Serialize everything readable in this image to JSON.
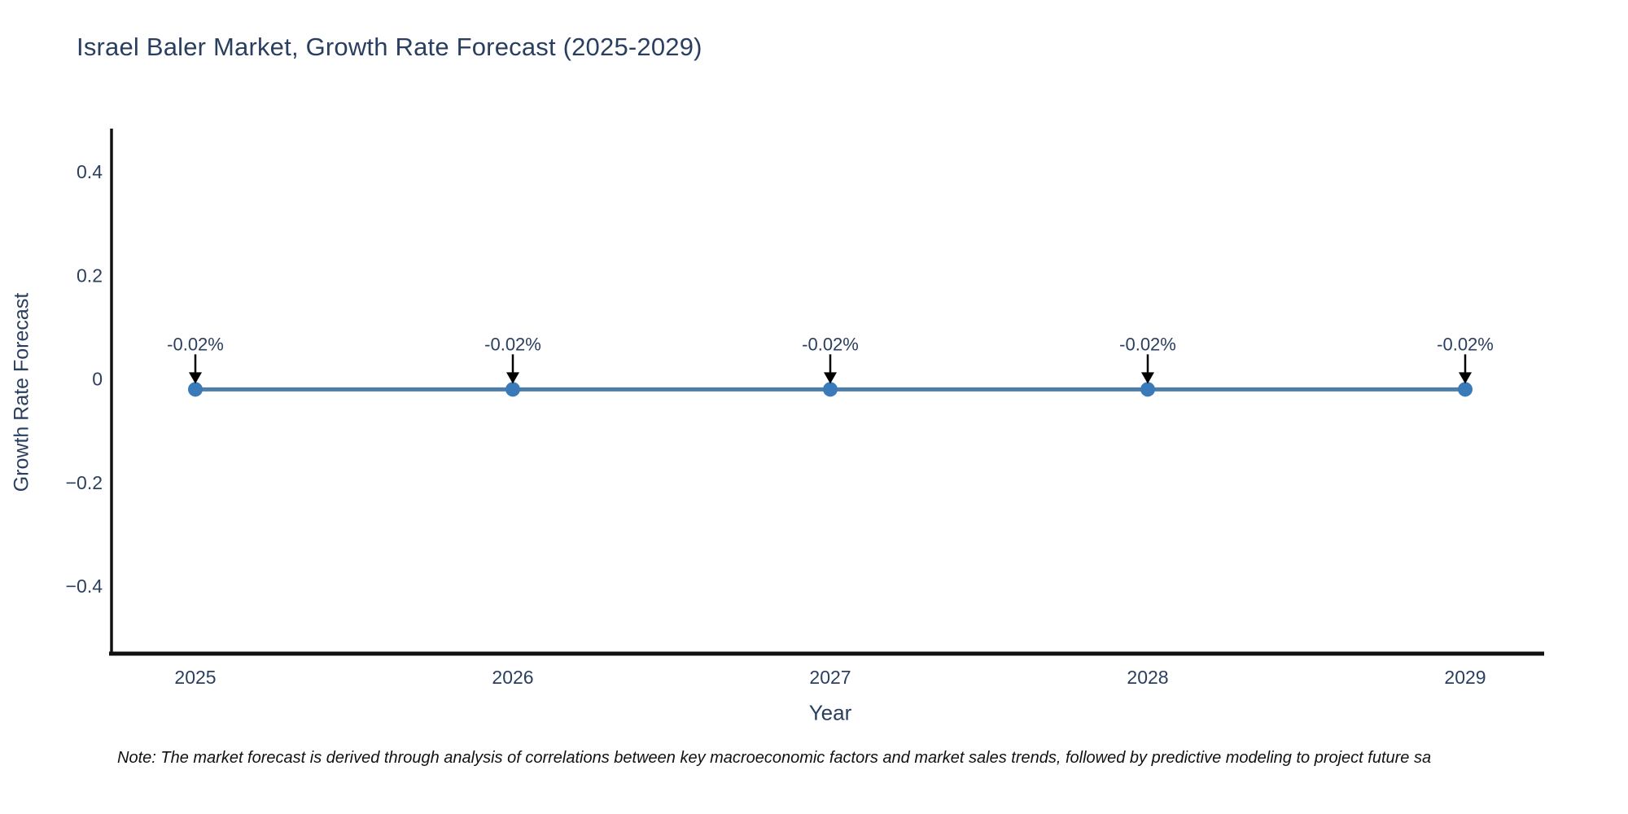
{
  "title": "Israel Baler Market, Growth Rate Forecast (2025-2029)",
  "note": "Note: The market forecast is derived through analysis of correlations between key macroeconomic factors and market sales trends, followed by predictive modeling to project future sa",
  "colors": {
    "line": "#4d7ea8",
    "marker": "#3a7ab8",
    "axis": "#111111",
    "text": "#2a3f5f",
    "arrow": "#000000",
    "note_text": "#111111",
    "background": "#ffffff"
  },
  "chart_data": {
    "type": "line",
    "title": "Israel Baler Market, Growth Rate Forecast (2025-2029)",
    "xlabel": "Year",
    "ylabel": "Growth Rate Forecast",
    "x": [
      2025,
      2026,
      2027,
      2028,
      2029
    ],
    "y": [
      -0.02,
      -0.02,
      -0.02,
      -0.02,
      -0.02
    ],
    "annotations": [
      "-0.02%",
      "-0.02%",
      "-0.02%",
      "-0.02%",
      "-0.02%"
    ],
    "xtick_labels": [
      "2025",
      "2026",
      "2027",
      "2028",
      "2029"
    ],
    "yticks": [
      -0.4,
      -0.2,
      0,
      0.2,
      0.4
    ],
    "ytick_labels": [
      "−0.4",
      "−0.2",
      "0",
      "0.2",
      "0.4"
    ],
    "ylim": [
      -0.53,
      0.48
    ],
    "grid": false,
    "legend": false,
    "marker": "circle",
    "annotation_arrow": "down"
  }
}
